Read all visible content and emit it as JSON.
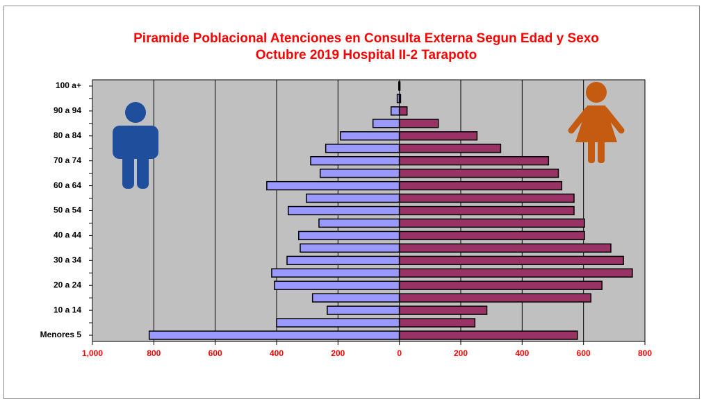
{
  "chart_data": {
    "type": "pyramid",
    "title": "Piramide Poblacional  Atenciones en Consulta Externa  Segun Edad y Sexo",
    "subtitle": "Octubre 2019  Hospital II-2 Tarapoto",
    "categories": [
      "Menores 5",
      null,
      "10 a 14",
      null,
      "20 a 24",
      null,
      "30 a 34",
      null,
      "40 a 44",
      null,
      "50 a 54",
      null,
      "60 a 64",
      null,
      "70 a 74",
      null,
      "80 a 84",
      null,
      "90 a 94",
      null,
      "100 a+"
    ],
    "series": [
      {
        "color": "#9999ff",
        "values": [
          -815,
          -400,
          -235,
          -283,
          -407,
          -416,
          -366,
          -323,
          -328,
          -262,
          -362,
          -303,
          -432,
          -258,
          -289,
          -240,
          -192,
          -86,
          -27,
          -7,
          -2
        ]
      },
      {
        "color": "#993366",
        "values": [
          580,
          246,
          285,
          624,
          660,
          759,
          730,
          689,
          603,
          603,
          569,
          569,
          529,
          518,
          486,
          330,
          253,
          127,
          25,
          4,
          2
        ]
      }
    ],
    "xlim": [
      -1000,
      800
    ],
    "xticks": [
      {
        "value": -1000,
        "label": "1,000"
      },
      {
        "value": -800,
        "label": "800"
      },
      {
        "value": -600,
        "label": "600"
      },
      {
        "value": -400,
        "label": "400"
      },
      {
        "value": -200,
        "label": "200"
      },
      0,
      200,
      400,
      600,
      800
    ],
    "grid": true
  }
}
